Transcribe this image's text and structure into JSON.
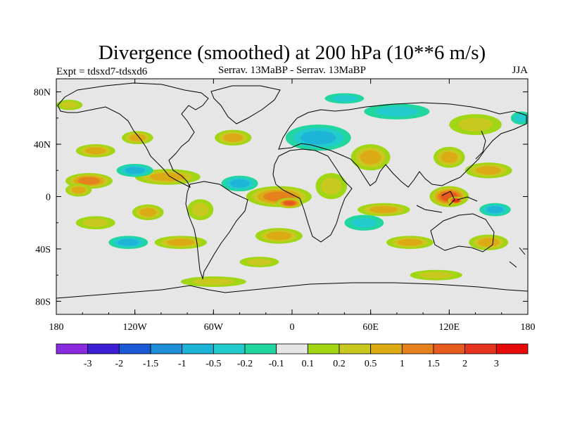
{
  "chart_data": {
    "type": "heatmap",
    "title": "Divergence (smoothed) at 200 hPa (10**6 m/s)",
    "subtitle_left": "Expt = tdsxd7-tdsxd6",
    "subtitle_center": "Serrav.   13MaBP - Serrav.   13MaBP",
    "subtitle_right": "JJA",
    "xlabel": "",
    "ylabel": "",
    "xlim": [
      -180,
      180
    ],
    "ylim": [
      -90,
      90
    ],
    "x_ticks": [
      {
        "value": -180,
        "label": "180"
      },
      {
        "value": -120,
        "label": "120W"
      },
      {
        "value": -60,
        "label": "60W"
      },
      {
        "value": 0,
        "label": "0"
      },
      {
        "value": 60,
        "label": "60E"
      },
      {
        "value": 120,
        "label": "120E"
      },
      {
        "value": 180,
        "label": "180"
      }
    ],
    "y_ticks": [
      {
        "value": 80,
        "label": "80N"
      },
      {
        "value": 40,
        "label": "40N"
      },
      {
        "value": 0,
        "label": "0"
      },
      {
        "value": -40,
        "label": "40S"
      },
      {
        "value": -80,
        "label": "80S"
      }
    ],
    "colorbar": {
      "labels": [
        "-3",
        "-2",
        "-1.5",
        "-1",
        "-0.5",
        "-0.2",
        "-0.1",
        "0.1",
        "0.2",
        "0.5",
        "1",
        "1.5",
        "2",
        "3"
      ],
      "colors": [
        "#8a2be2",
        "#3d1fd6",
        "#1a5ad6",
        "#1e8fd6",
        "#1eb4d8",
        "#22cccc",
        "#22d6a0",
        "#e6e6e6",
        "#a0d614",
        "#c8c81e",
        "#dcaa14",
        "#e6821e",
        "#e65a1e",
        "#e6321e",
        "#e60a0a"
      ]
    },
    "features": [
      {
        "lon": -155,
        "lat": 12,
        "rx": 18,
        "ry": 6,
        "v": 1.0
      },
      {
        "lon": -163,
        "lat": 5,
        "rx": 10,
        "ry": 5,
        "v": 0.6
      },
      {
        "lon": -150,
        "lat": 35,
        "rx": 15,
        "ry": 5,
        "v": 0.6
      },
      {
        "lon": -118,
        "lat": 45,
        "rx": 12,
        "ry": 5,
        "v": 0.5
      },
      {
        "lon": -95,
        "lat": 15,
        "rx": 25,
        "ry": 6,
        "v": 0.6
      },
      {
        "lon": -120,
        "lat": 20,
        "rx": 14,
        "ry": 5,
        "v": -0.8
      },
      {
        "lon": -150,
        "lat": -20,
        "rx": 15,
        "ry": 5,
        "v": 0.3
      },
      {
        "lon": -110,
        "lat": -12,
        "rx": 12,
        "ry": 6,
        "v": 0.5
      },
      {
        "lon": -85,
        "lat": -35,
        "rx": 20,
        "ry": 5,
        "v": 0.6
      },
      {
        "lon": -125,
        "lat": -35,
        "rx": 15,
        "ry": 5,
        "v": -0.5
      },
      {
        "lon": -70,
        "lat": -10,
        "rx": 10,
        "ry": 8,
        "v": 0.4
      },
      {
        "lon": -45,
        "lat": 45,
        "rx": 14,
        "ry": 6,
        "v": 0.6
      },
      {
        "lon": -40,
        "lat": 10,
        "rx": 14,
        "ry": 6,
        "v": -0.6
      },
      {
        "lon": -10,
        "lat": 0,
        "rx": 25,
        "ry": 8,
        "v": 1.4
      },
      {
        "lon": -2,
        "lat": -5,
        "rx": 10,
        "ry": 4,
        "v": 1.8
      },
      {
        "lon": -10,
        "lat": -30,
        "rx": 18,
        "ry": 6,
        "v": 0.5
      },
      {
        "lon": -25,
        "lat": -50,
        "rx": 15,
        "ry": 4,
        "v": 0.3
      },
      {
        "lon": 20,
        "lat": 45,
        "rx": 25,
        "ry": 10,
        "v": -0.6
      },
      {
        "lon": 30,
        "lat": 8,
        "rx": 12,
        "ry": 10,
        "v": 0.4
      },
      {
        "lon": 60,
        "lat": 30,
        "rx": 15,
        "ry": 10,
        "v": 0.8
      },
      {
        "lon": 55,
        "lat": -20,
        "rx": 15,
        "ry": 6,
        "v": -0.4
      },
      {
        "lon": 70,
        "lat": -10,
        "rx": 20,
        "ry": 5,
        "v": 0.5
      },
      {
        "lon": 90,
        "lat": -35,
        "rx": 18,
        "ry": 5,
        "v": 0.5
      },
      {
        "lon": 120,
        "lat": 0,
        "rx": 15,
        "ry": 8,
        "v": 1.6
      },
      {
        "lon": 125,
        "lat": -3,
        "rx": 6,
        "ry": 3,
        "v": 2.2
      },
      {
        "lon": 120,
        "lat": 30,
        "rx": 12,
        "ry": 8,
        "v": 0.6
      },
      {
        "lon": 150,
        "lat": 20,
        "rx": 18,
        "ry": 6,
        "v": 0.5
      },
      {
        "lon": 140,
        "lat": 55,
        "rx": 20,
        "ry": 8,
        "v": 0.4
      },
      {
        "lon": 155,
        "lat": -10,
        "rx": 12,
        "ry": 5,
        "v": -0.6
      },
      {
        "lon": 150,
        "lat": -35,
        "rx": 15,
        "ry": 6,
        "v": 0.6
      },
      {
        "lon": 110,
        "lat": -60,
        "rx": 20,
        "ry": 4,
        "v": 0.4
      },
      {
        "lon": -60,
        "lat": -65,
        "rx": 25,
        "ry": 4,
        "v": 0.3
      },
      {
        "lon": 80,
        "lat": 65,
        "rx": 25,
        "ry": 6,
        "v": -0.4
      },
      {
        "lon": 40,
        "lat": 75,
        "rx": 15,
        "ry": 4,
        "v": -0.3
      },
      {
        "lon": -170,
        "lat": 70,
        "rx": 10,
        "ry": 4,
        "v": 0.3
      },
      {
        "lon": 175,
        "lat": 60,
        "rx": 8,
        "ry": 5,
        "v": -0.3
      }
    ]
  }
}
